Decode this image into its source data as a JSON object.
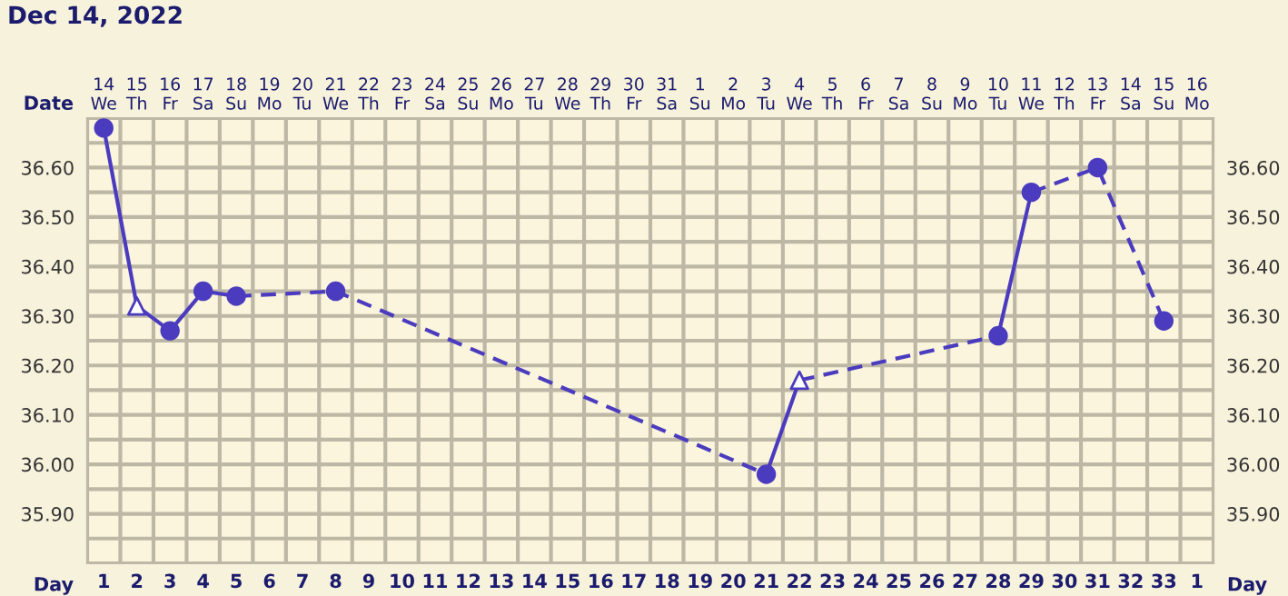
{
  "chart_data": {
    "type": "line",
    "title": "Dec 14, 2022",
    "xlabel": "Day",
    "x2label": "Date",
    "categories": [
      "1",
      "2",
      "3",
      "4",
      "5",
      "6",
      "7",
      "8",
      "9",
      "10",
      "11",
      "12",
      "13",
      "14",
      "15",
      "16",
      "17",
      "18",
      "19",
      "20",
      "21",
      "22",
      "23",
      "24",
      "25",
      "26",
      "27",
      "28",
      "29",
      "30",
      "31",
      "32",
      "33",
      "1"
    ],
    "annotations": [
      "14\nWe",
      "15\nTh",
      "16\nFr",
      "17\nSa",
      "18\nSu",
      "19\nMo",
      "20\nTu",
      "21\nWe",
      "22\nTh",
      "23\nFr",
      "24\nSa",
      "25\nSu",
      "26\nMo",
      "27\nTu",
      "28\nWe",
      "29\nTh",
      "30\nFr",
      "31\nSa",
      "1\nSu",
      "2\nMo",
      "3\nTu",
      "4\nWe",
      "5\nTh",
      "6\nFr",
      "7\nSa",
      "8\nSu",
      "9\nMo",
      "10\nTu",
      "11\nWe",
      "12\nTh",
      "13\nFr",
      "14\nSa",
      "15\nSu",
      "16\nMo"
    ],
    "ylim": [
      35.8,
      36.7
    ],
    "yticks": [
      {
        "value": 35.9,
        "label": "35.90"
      },
      {
        "value": 36.0,
        "label": "36.00"
      },
      {
        "value": 36.1,
        "label": "36.10"
      },
      {
        "value": 36.2,
        "label": "36.20"
      },
      {
        "value": 36.3,
        "label": "36.30"
      },
      {
        "value": 36.4,
        "label": "36.40"
      },
      {
        "value": 36.5,
        "label": "36.50"
      },
      {
        "value": 36.6,
        "label": "36.60"
      }
    ],
    "y2lim": [
      35.8,
      36.7
    ],
    "y2ticks": [
      {
        "value": 35.9,
        "label": "35.90"
      },
      {
        "value": 36.0,
        "label": "36.00"
      },
      {
        "value": 36.1,
        "label": "36.10"
      },
      {
        "value": 36.2,
        "label": "36.20"
      },
      {
        "value": 36.3,
        "label": "36.30"
      },
      {
        "value": 36.4,
        "label": "36.40"
      },
      {
        "value": 36.5,
        "label": "36.50"
      },
      {
        "value": 36.6,
        "label": "36.60"
      }
    ],
    "grid": true,
    "series": [
      {
        "line_style": "solid",
        "color": "#4b3bbf",
        "values": [
          36.68,
          36.32,
          36.27,
          36.35,
          36.34,
          null,
          null,
          null,
          null,
          null,
          null,
          null,
          null,
          null,
          null,
          null,
          null,
          null,
          null,
          null,
          null,
          null,
          null,
          null,
          null,
          null,
          null,
          null,
          null,
          null,
          null,
          null,
          null,
          null
        ]
      },
      {
        "line_style": "dashed",
        "color": "#4b3bbf",
        "values": [
          null,
          null,
          null,
          null,
          36.34,
          null,
          null,
          36.35,
          null,
          null,
          null,
          null,
          null,
          null,
          null,
          null,
          null,
          null,
          null,
          null,
          35.98,
          null,
          null,
          null,
          null,
          null,
          null,
          null,
          null,
          null,
          null,
          null,
          null,
          null
        ]
      },
      {
        "line_style": "solid",
        "color": "#4b3bbf",
        "values": [
          null,
          null,
          null,
          null,
          null,
          null,
          null,
          null,
          null,
          null,
          null,
          null,
          null,
          null,
          null,
          null,
          null,
          null,
          null,
          null,
          35.98,
          36.17,
          null,
          null,
          null,
          null,
          null,
          null,
          null,
          null,
          null,
          null,
          null,
          null
        ]
      },
      {
        "line_style": "dashed",
        "color": "#4b3bbf",
        "values": [
          null,
          null,
          null,
          null,
          null,
          null,
          null,
          null,
          null,
          null,
          null,
          null,
          null,
          null,
          null,
          null,
          null,
          null,
          null,
          null,
          null,
          36.17,
          null,
          null,
          null,
          null,
          null,
          36.26,
          null,
          null,
          null,
          null,
          null,
          null
        ]
      },
      {
        "line_style": "solid",
        "color": "#4b3bbf",
        "values": [
          null,
          null,
          null,
          null,
          null,
          null,
          null,
          null,
          null,
          null,
          null,
          null,
          null,
          null,
          null,
          null,
          null,
          null,
          null,
          null,
          null,
          null,
          null,
          null,
          null,
          null,
          null,
          36.26,
          36.55,
          null,
          null,
          null,
          null,
          null
        ]
      },
      {
        "line_style": "dashed",
        "color": "#4b3bbf",
        "values": [
          null,
          null,
          null,
          null,
          null,
          null,
          null,
          null,
          null,
          null,
          null,
          null,
          null,
          null,
          null,
          null,
          null,
          null,
          null,
          null,
          null,
          null,
          null,
          null,
          null,
          null,
          null,
          null,
          36.55,
          null,
          36.6,
          null,
          36.29,
          null
        ]
      },
      {
        "type": "scatter",
        "marker": "circle",
        "color": "#4b3bbf",
        "values": [
          36.68,
          null,
          36.27,
          36.35,
          36.34,
          null,
          null,
          36.35,
          null,
          null,
          null,
          null,
          null,
          null,
          null,
          null,
          null,
          null,
          null,
          null,
          35.98,
          null,
          null,
          null,
          null,
          null,
          null,
          36.26,
          36.55,
          null,
          36.6,
          null,
          36.29,
          null
        ]
      },
      {
        "type": "scatter",
        "marker": "triangle",
        "color": "#4b3bbf",
        "values": [
          null,
          36.32,
          null,
          null,
          null,
          null,
          null,
          null,
          null,
          null,
          null,
          null,
          null,
          null,
          null,
          null,
          null,
          null,
          null,
          null,
          null,
          36.17,
          null,
          null,
          null,
          null,
          null,
          null,
          null,
          null,
          null,
          null,
          null,
          null
        ]
      }
    ]
  }
}
